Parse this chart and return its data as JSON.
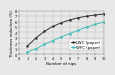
{
  "title": "",
  "xlabel": "Number of nips",
  "ylabel": "Thickness reduction (%)",
  "xlim": [
    0,
    10
  ],
  "ylim": [
    0,
    8
  ],
  "yticks": [
    0,
    1,
    2,
    3,
    4,
    5,
    6,
    7,
    8
  ],
  "xticks": [
    0,
    1,
    2,
    3,
    4,
    5,
    6,
    7,
    8,
    9,
    10
  ],
  "lwc_x": [
    1,
    2,
    3,
    4,
    5,
    6,
    7,
    8,
    9,
    10
  ],
  "lwc_y": [
    1.5,
    3.0,
    4.2,
    5.1,
    5.8,
    6.3,
    6.7,
    7.0,
    7.2,
    7.4
  ],
  "wfc_x": [
    1,
    2,
    3,
    4,
    5,
    6,
    7,
    8,
    9,
    10
  ],
  "wfc_y": [
    0.4,
    1.0,
    1.8,
    2.5,
    3.2,
    3.8,
    4.4,
    5.0,
    5.5,
    5.9
  ],
  "lwc_color": "#333333",
  "wfc_color": "#44bbbb",
  "lwc_label": "LWC (paper)",
  "wfc_label": "WFC (paper)",
  "grid_color": "#bbbbbb",
  "bg_color": "#e8e8e8",
  "legend_fontsize": 2.8,
  "axis_fontsize": 2.8,
  "tick_fontsize": 2.5
}
